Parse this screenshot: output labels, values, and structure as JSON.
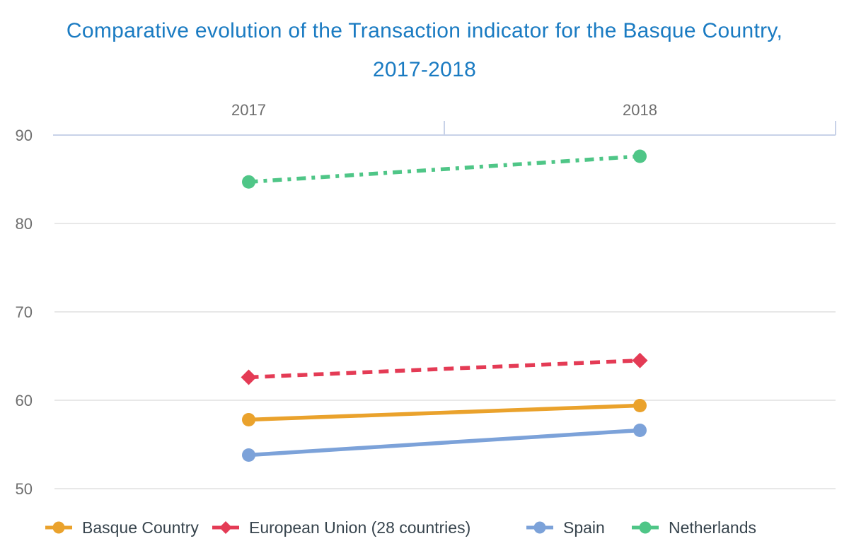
{
  "title": {
    "line1": "Comparative evolution of the Transaction indicator for the Basque Country,",
    "line2": "2017-2018"
  },
  "colors": {
    "background": "#FFFFFF",
    "title_text": "#1A7BC2",
    "axis_line": "#C8D2E8",
    "gridline": "#E8E8E8",
    "axis_label_text": "#6E6E6E",
    "legend_text": "#37444D"
  },
  "chart_data": {
    "type": "line",
    "categories": [
      "2017",
      "2018"
    ],
    "x_axis_position": "top",
    "y_ticks": [
      90,
      80,
      70,
      60,
      50
    ],
    "ylim": [
      50,
      90
    ],
    "grid": true,
    "legend_position": "bottom",
    "title": "Comparative evolution of the Transaction indicator for the Basque Country, 2017-2018",
    "xlabel": "",
    "ylabel": "",
    "series": [
      {
        "name": "Basque Country",
        "values": [
          57.8,
          59.4
        ],
        "color": "#EAA22C",
        "line_style": "solid",
        "marker": "circle"
      },
      {
        "name": "European Union (28 countries)",
        "values": [
          62.6,
          64.5
        ],
        "color": "#E43B55",
        "line_style": "dashed",
        "marker": "diamond"
      },
      {
        "name": "Spain",
        "values": [
          53.8,
          56.6
        ],
        "color": "#7CA2D9",
        "line_style": "solid",
        "marker": "circle"
      },
      {
        "name": "Netherlands",
        "values": [
          84.7,
          87.6
        ],
        "color": "#4FC687",
        "line_style": "dash-dot",
        "marker": "circle"
      }
    ]
  }
}
